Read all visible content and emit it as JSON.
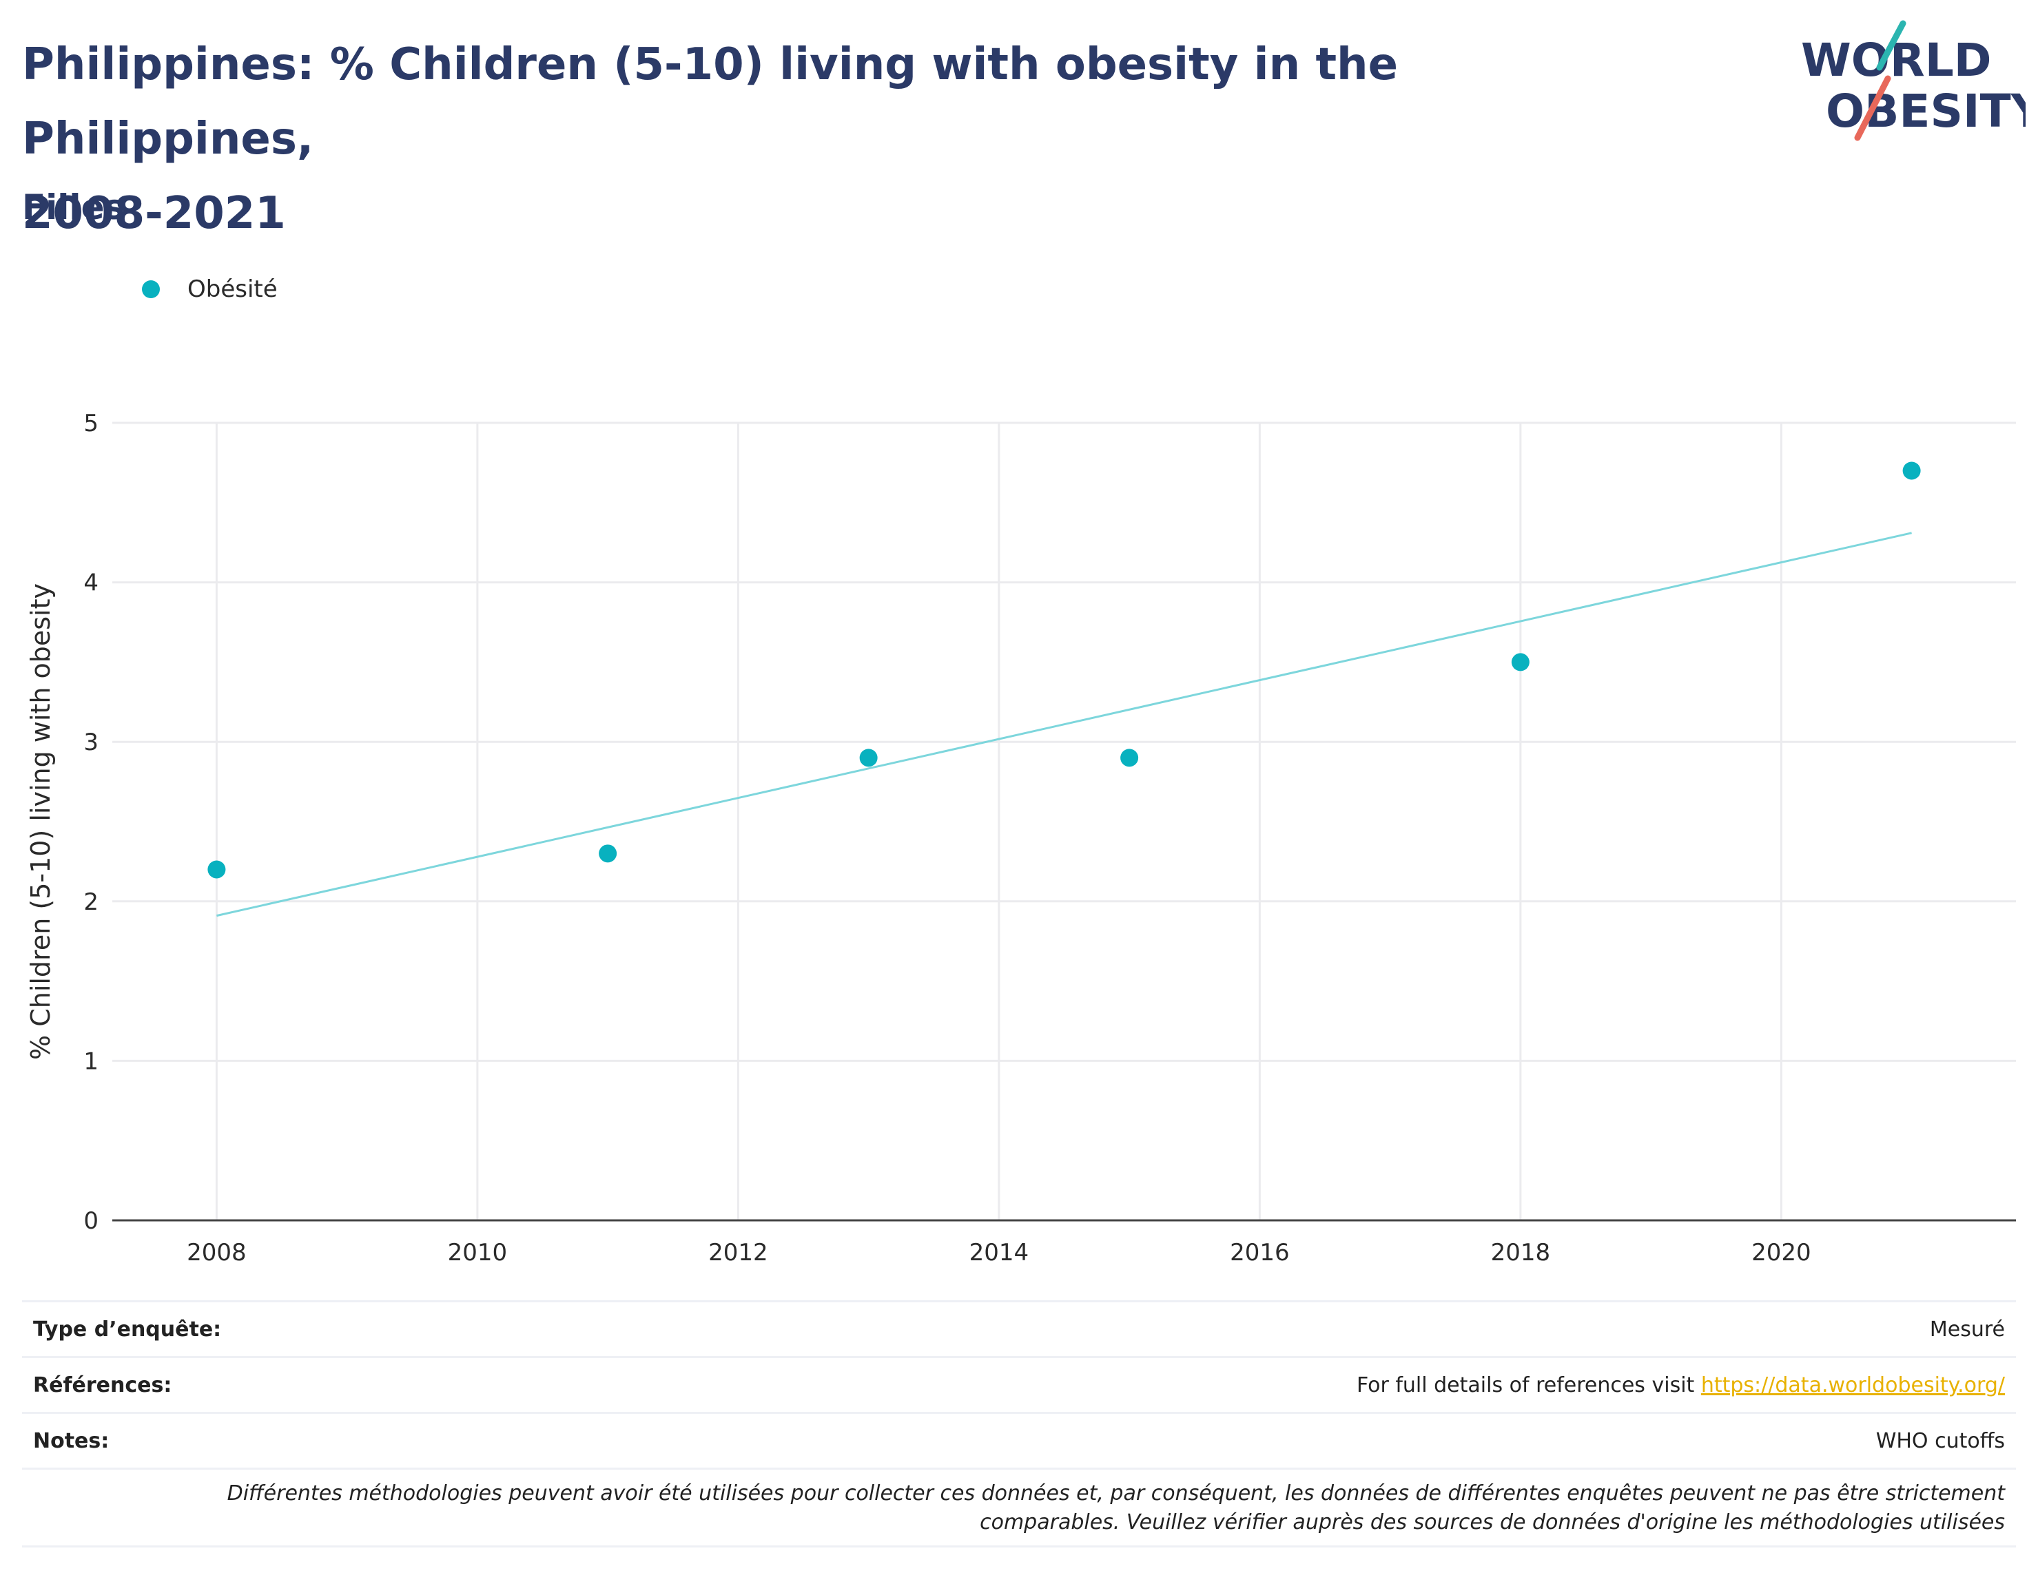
{
  "header": {
    "title_line1": "Philippines: % Children (5-10) living with obesity in the Philippines,",
    "title_line2": "2008-2021",
    "subtitle": "Filles"
  },
  "logo": {
    "text_top": "WORLD",
    "text_bottom": "OBESITY",
    "accent_teal": "#2bb5b0",
    "accent_red": "#e8685a",
    "text_color": "#2b3a67"
  },
  "legend": {
    "items": [
      {
        "label": "Obésité",
        "color": "#08b1bf"
      }
    ]
  },
  "chart_data": {
    "type": "scatter",
    "title": "Philippines: % Children (5-10) living with obesity in the Philippines, 2008-2021",
    "subtitle": "Filles",
    "xlabel": "",
    "ylabel": "% Children (5-10) living with obesity",
    "xlim": [
      2007.2,
      2021.8
    ],
    "ylim": [
      0,
      5
    ],
    "x_ticks": [
      2008,
      2010,
      2012,
      2014,
      2016,
      2018,
      2020
    ],
    "y_ticks": [
      0,
      1,
      2,
      3,
      4,
      5
    ],
    "grid": true,
    "legend_position": "top-left",
    "series": [
      {
        "name": "Obésité",
        "color": "#08b1bf",
        "x": [
          2008,
          2011,
          2013,
          2015,
          2018,
          2021
        ],
        "y": [
          2.2,
          2.3,
          2.9,
          2.9,
          3.5,
          4.7
        ]
      }
    ],
    "trendline": {
      "color": "#7dd6dc",
      "x": [
        2008,
        2021
      ],
      "y": [
        1.91,
        4.31
      ]
    }
  },
  "footer": {
    "survey_type_label": "Type d’enquête:",
    "survey_type_value": "Mesuré",
    "references_label": "Références:",
    "references_text": "For full details of references visit ",
    "references_link": "https://data.worldobesity.org/",
    "notes_label": "Notes:",
    "notes_value": "WHO cutoffs",
    "disclaimer_line1": "Différentes méthodologies peuvent avoir été utilisées pour collecter ces données et, par conséquent, les données de différentes enquêtes peuvent ne pas être strictement",
    "disclaimer_line2": "comparables. Veuillez vérifier auprès des sources de données d'origine les méthodologies utilisées"
  }
}
